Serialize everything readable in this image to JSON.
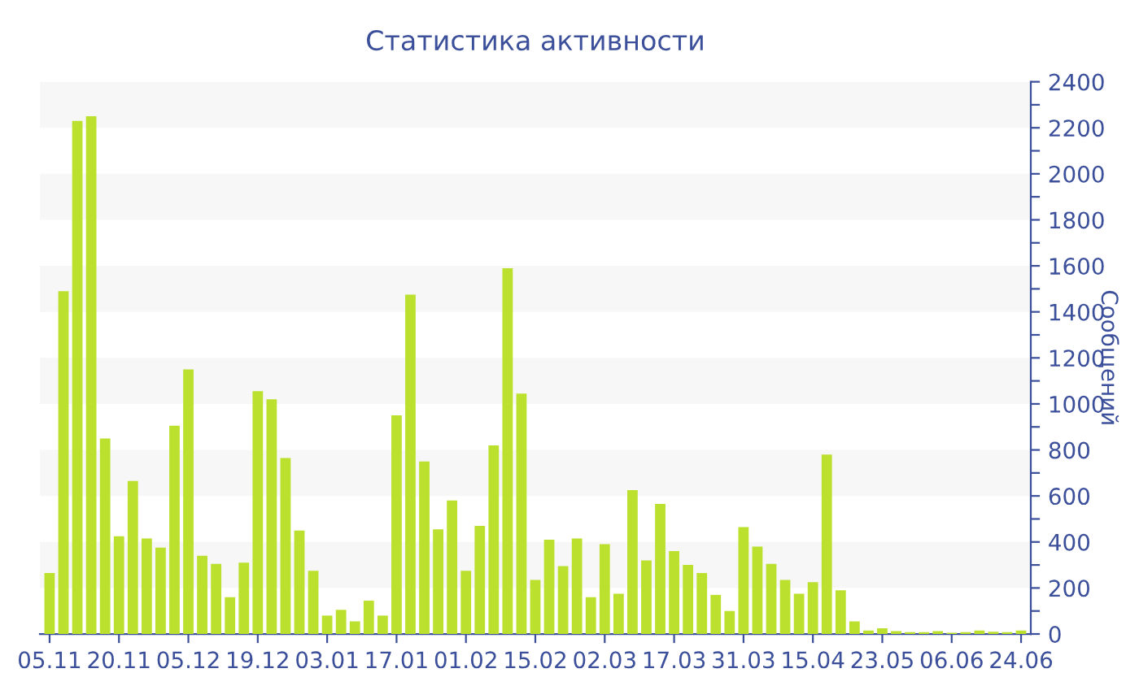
{
  "chart_data": {
    "type": "bar",
    "title": "Статистика активности",
    "ylabel": "Сообщений",
    "categories": [
      "05.11",
      null,
      null,
      null,
      null,
      "20.11",
      null,
      null,
      null,
      null,
      "05.12",
      null,
      null,
      null,
      null,
      "19.12",
      null,
      null,
      null,
      null,
      "03.01",
      null,
      null,
      null,
      null,
      "17.01",
      null,
      null,
      null,
      null,
      "01.02",
      null,
      null,
      null,
      null,
      "15.02",
      null,
      null,
      null,
      null,
      "02.03",
      null,
      null,
      null,
      null,
      "17.03",
      null,
      null,
      null,
      null,
      "31.03",
      null,
      null,
      null,
      null,
      "15.04",
      null,
      null,
      null,
      null,
      "23.05",
      null,
      null,
      null,
      null,
      "06.06",
      null,
      null,
      null,
      null,
      "24.06"
    ],
    "values": [
      265,
      1490,
      2230,
      2250,
      850,
      425,
      665,
      415,
      375,
      905,
      1150,
      340,
      305,
      160,
      310,
      1055,
      1020,
      765,
      450,
      275,
      80,
      105,
      55,
      145,
      80,
      950,
      1475,
      750,
      455,
      580,
      275,
      470,
      820,
      1590,
      1045,
      235,
      410,
      295,
      415,
      160,
      390,
      175,
      625,
      320,
      565,
      360,
      300,
      265,
      170,
      100,
      465,
      380,
      305,
      235,
      175,
      225,
      780,
      190,
      55,
      15,
      25,
      12,
      8,
      8,
      12,
      5,
      8,
      15,
      10,
      8,
      15
    ],
    "color": "#bbe02e",
    "ylim": [
      0,
      2400
    ],
    "yticks": [
      0,
      {
        "value": 100,
        "label": null
      },
      200,
      {
        "value": 300,
        "label": null
      },
      400,
      {
        "value": 500,
        "label": null
      },
      600,
      {
        "value": 700,
        "label": null
      },
      800,
      {
        "value": 900,
        "label": null
      },
      1000,
      {
        "value": 1100,
        "label": null
      },
      1200,
      {
        "value": 1300,
        "label": null
      },
      1400,
      {
        "value": 1500,
        "label": null
      },
      1600,
      {
        "value": 1700,
        "label": null
      },
      1800,
      {
        "value": 1900,
        "label": null
      },
      2000,
      {
        "value": 2100,
        "label": null
      },
      2200,
      {
        "value": 2300,
        "label": null
      },
      2400
    ],
    "legend": false
  }
}
